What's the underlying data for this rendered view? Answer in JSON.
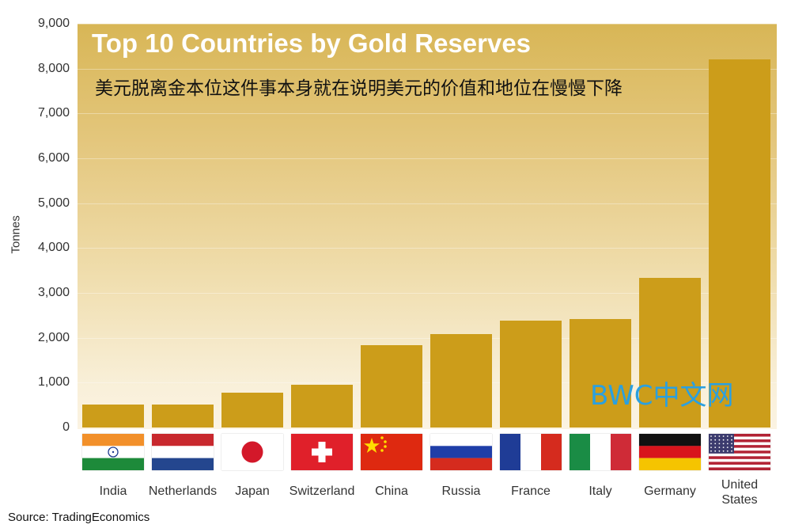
{
  "chart_data": {
    "type": "bar",
    "title": "Top 10 Countries by Gold Reserves",
    "subtitle": "美元脱离金本位这件事本身就在说明美元的价值和地位在慢慢下降",
    "xlabel": "",
    "ylabel": "Tonnes",
    "ylim": [
      0,
      9000
    ],
    "yticks": [
      "0",
      "1,000",
      "2,000",
      "3,000",
      "4,000",
      "5,000",
      "6,000",
      "7,000",
      "8,000",
      "9,000"
    ],
    "categories": [
      "India",
      "Netherlands",
      "Japan",
      "Switzerland",
      "China",
      "Russia",
      "France",
      "Italy",
      "Germany",
      "United States"
    ],
    "values": [
      520,
      510,
      770,
      960,
      1830,
      2080,
      2380,
      2420,
      3340,
      8200
    ],
    "bar_color": "#cc9d1a",
    "flags": [
      "india-flag-icon",
      "netherlands-flag-icon",
      "japan-flag-icon",
      "switzerland-flag-icon",
      "china-flag-icon",
      "russia-flag-icon",
      "france-flag-icon",
      "italy-flag-icon",
      "germany-flag-icon",
      "united-states-flag-icon"
    ]
  },
  "watermark": "BWC中文网",
  "source": "Source: TradingEconomics"
}
